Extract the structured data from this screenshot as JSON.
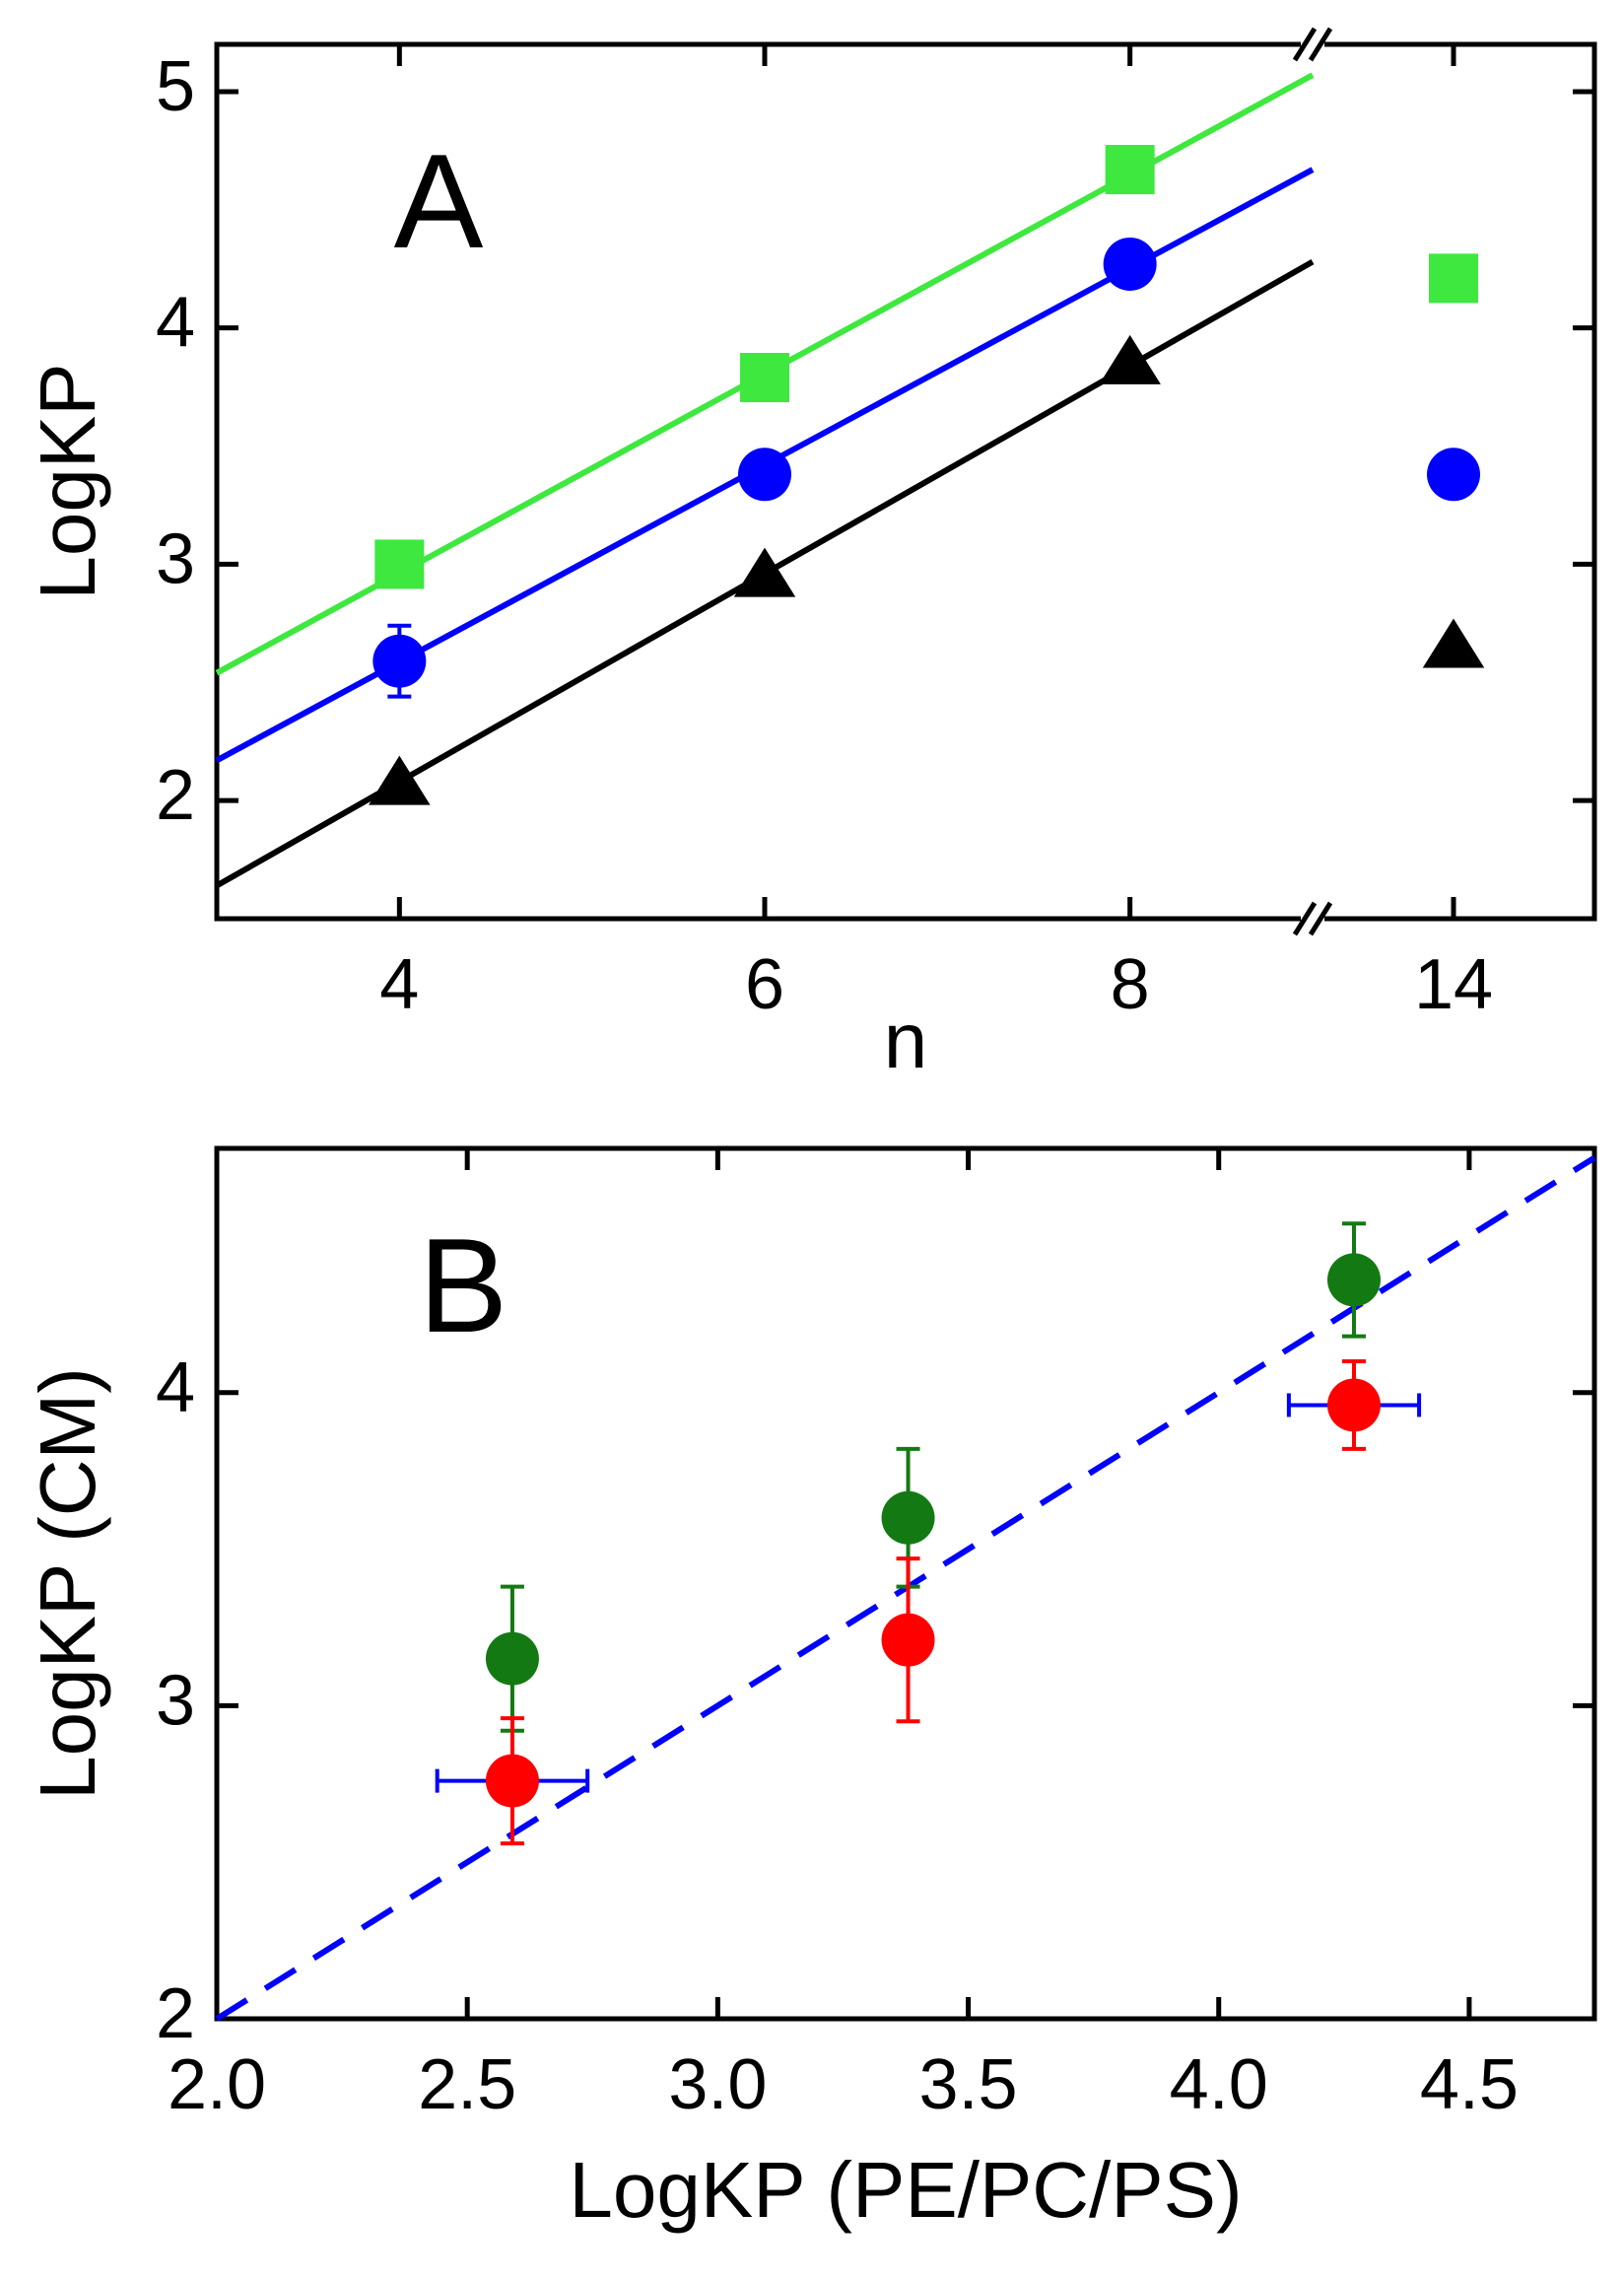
{
  "chart_data": [
    {
      "type": "scatter",
      "annotation": "A",
      "xlabel": "n",
      "ylabel": "LogKP",
      "xlim": [
        3,
        15
      ],
      "xbreak": [
        9,
        13
      ],
      "xticks": [
        4,
        6,
        8,
        14
      ],
      "ylim": [
        1.5,
        5.2
      ],
      "yticks": [
        2,
        3,
        4,
        5
      ],
      "series": [
        {
          "color": "#3ee83e",
          "marker": "square",
          "x": [
            4,
            6,
            8,
            14
          ],
          "values": [
            3.0,
            3.79,
            4.67,
            4.21
          ],
          "errors": [
            0.07,
            null,
            null,
            null
          ]
        },
        {
          "color": "#0000ff",
          "marker": "circle",
          "x": [
            4,
            6,
            8,
            14
          ],
          "values": [
            2.59,
            3.38,
            4.27,
            3.38
          ],
          "errors": [
            0.15,
            null,
            null,
            null
          ]
        },
        {
          "color": "#000000",
          "marker": "triangle",
          "x": [
            4,
            6,
            8,
            14
          ],
          "values": [
            2.07,
            2.95,
            3.85,
            2.65
          ],
          "errors": [
            null,
            null,
            null,
            null
          ]
        }
      ],
      "fits": [
        {
          "color": "#3ee83e",
          "x": [
            3,
            9
          ],
          "values": [
            2.54,
            5.07
          ]
        },
        {
          "color": "#0000ff",
          "x": [
            3,
            9
          ],
          "values": [
            2.17,
            4.67
          ]
        },
        {
          "color": "#000000",
          "x": [
            3,
            9
          ],
          "values": [
            1.64,
            4.28
          ]
        }
      ]
    },
    {
      "type": "scatter",
      "annotation": "B",
      "xlabel": "LogKP (PE/PC/PS)",
      "ylabel": "LogKP (CM)",
      "xlim": [
        2.0,
        4.75
      ],
      "xticks": [
        {
          "value": 2.0,
          "label": "2.0"
        },
        {
          "value": 2.5,
          "label": "2.5"
        },
        {
          "value": 3.0,
          "label": "3.0"
        },
        {
          "value": 3.5,
          "label": "3.5"
        },
        {
          "value": 4.0,
          "label": "4.0"
        },
        {
          "value": 4.5,
          "label": "4.5"
        }
      ],
      "ylim": [
        2,
        4.78
      ],
      "yticks": [
        2,
        3,
        4
      ],
      "series": [
        {
          "color": "#137a13",
          "marker": "circle",
          "x": [
            2.59,
            3.38,
            4.27
          ],
          "values": [
            3.15,
            3.6,
            4.36
          ],
          "errors": [
            0.23,
            0.22,
            0.18
          ]
        },
        {
          "color": "#ff0000",
          "marker": "circle",
          "x": [
            2.59,
            3.38,
            4.27
          ],
          "values": [
            2.76,
            3.21,
            3.96
          ],
          "errors": [
            0.2,
            0.26,
            0.14
          ],
          "xerrors": [
            0.15,
            0.03,
            0.13
          ],
          "xerror_color": "#0000ff"
        }
      ],
      "reference_line": {
        "color": "#0000ff",
        "dashed": true,
        "x": [
          2.0,
          4.75
        ],
        "values": [
          2.0,
          4.75
        ]
      }
    }
  ]
}
